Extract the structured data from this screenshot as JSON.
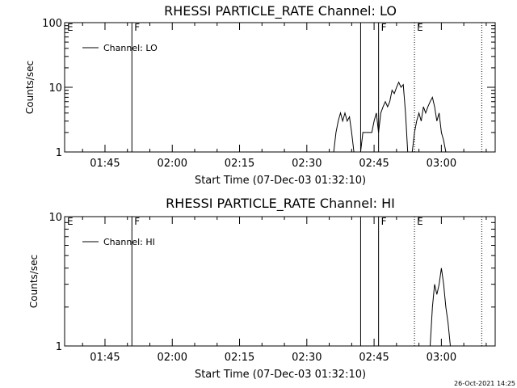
{
  "chart_data": [
    {
      "type": "line",
      "title": "RHESSI PARTICLE_RATE Channel: LO",
      "xlabel": "Start Time (07-Dec-03 01:32:10)",
      "ylabel": "Counts/sec",
      "yscale": "log",
      "ylim": [
        1,
        100
      ],
      "y_tick_labels": [
        "1",
        "10",
        "100"
      ],
      "y_tick_values": [
        1,
        10,
        100
      ],
      "xlim": [
        "01:36",
        "03:12"
      ],
      "x_tick_labels": [
        "01:45",
        "02:00",
        "02:15",
        "02:30",
        "02:45",
        "03:00"
      ],
      "legend": "top-left",
      "grid": false,
      "series": [
        {
          "name": "Channel: LO",
          "x": [
            "02:36.0",
            "02:36.5",
            "02:37.0",
            "02:37.5",
            "02:38.0",
            "02:38.5",
            "02:39.0",
            "02:39.5",
            "02:40.0",
            "02:40.5",
            "02:41.0",
            "02:41.5",
            "02:42.0",
            "02:42.5",
            "02:43.0",
            "02:43.5",
            "02:44.0",
            "02:44.5",
            "02:45.0",
            "02:45.5",
            "02:46.0",
            "02:46.5",
            "02:47.0",
            "02:47.5",
            "02:48.0",
            "02:48.5",
            "02:49.0",
            "02:49.5",
            "02:50.0",
            "02:50.5",
            "02:51.0",
            "02:51.5",
            "02:52.0",
            "02:52.5",
            "02:53.0",
            "02:53.5",
            "02:54.0",
            "02:54.5",
            "02:55.0",
            "02:55.5",
            "02:56.0",
            "02:56.5",
            "02:57.0",
            "02:57.5",
            "02:58.0",
            "02:58.5",
            "02:59.0",
            "02:59.5",
            "03:00.0",
            "03:00.5",
            "03:01.0"
          ],
          "values": [
            1,
            2,
            3,
            4,
            3,
            4,
            3,
            3.5,
            2,
            1,
            1,
            1,
            1,
            2,
            2,
            2,
            2,
            2,
            3,
            4,
            2,
            4,
            5,
            6,
            5,
            6,
            9,
            8,
            10,
            12,
            10,
            11,
            4,
            1,
            1,
            1,
            2,
            3,
            4,
            3,
            5,
            4,
            5,
            6,
            7,
            5,
            3,
            4,
            2,
            1.5,
            1
          ]
        }
      ],
      "vertical_markers": [
        {
          "time": "01:36",
          "label": "E",
          "style": "solid"
        },
        {
          "time": "01:51",
          "label": "F",
          "style": "solid"
        },
        {
          "time": "02:42",
          "label": "",
          "style": "solid"
        },
        {
          "time": "02:46",
          "label": "F",
          "style": "solid"
        },
        {
          "time": "02:54",
          "label": "E",
          "style": "dotted"
        },
        {
          "time": "03:09",
          "label": "",
          "style": "dotted"
        }
      ]
    },
    {
      "type": "line",
      "title": "RHESSI PARTICLE_RATE Channel: HI",
      "xlabel": "Start Time (07-Dec-03 01:32:10)",
      "ylabel": "Counts/sec",
      "yscale": "log",
      "ylim": [
        1,
        10
      ],
      "y_tick_labels": [
        "1",
        "10"
      ],
      "y_tick_values": [
        1,
        10
      ],
      "xlim": [
        "01:36",
        "03:12"
      ],
      "x_tick_labels": [
        "01:45",
        "02:00",
        "02:15",
        "02:30",
        "02:45",
        "03:00"
      ],
      "legend": "top-left",
      "grid": false,
      "series": [
        {
          "name": "Channel: HI",
          "x": [
            "02:57.5",
            "02:58.0",
            "02:58.5",
            "02:59.0",
            "02:59.5",
            "03:00.0",
            "03:00.5",
            "03:01.0",
            "03:01.5",
            "03:02.0"
          ],
          "values": [
            1,
            2,
            3,
            2.5,
            3,
            4,
            3,
            2,
            1.5,
            1
          ]
        }
      ],
      "vertical_markers": [
        {
          "time": "01:36",
          "label": "E",
          "style": "solid"
        },
        {
          "time": "01:51",
          "label": "F",
          "style": "solid"
        },
        {
          "time": "02:42",
          "label": "",
          "style": "solid"
        },
        {
          "time": "02:46",
          "label": "F",
          "style": "solid"
        },
        {
          "time": "02:54",
          "label": "E",
          "style": "dotted"
        },
        {
          "time": "03:09",
          "label": "",
          "style": "dotted"
        }
      ]
    }
  ],
  "footer": {
    "timestamp": "26-Oct-2021 14:25"
  }
}
